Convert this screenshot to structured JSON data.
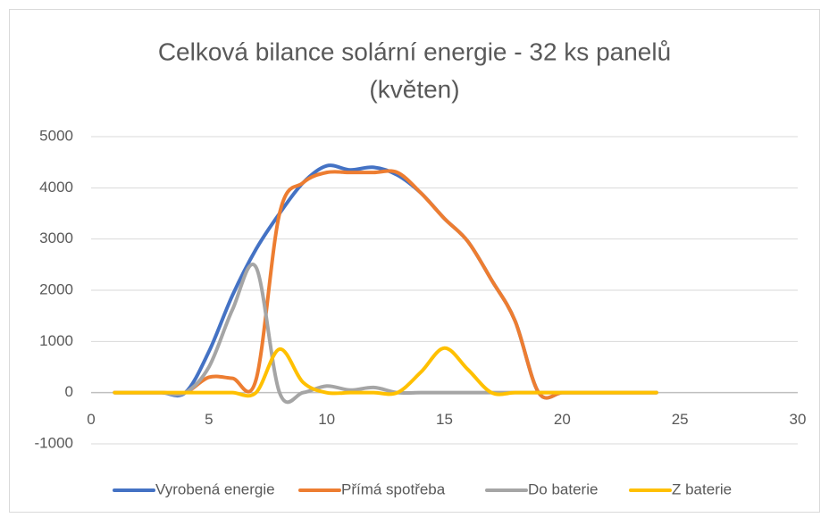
{
  "chart_data": {
    "type": "line",
    "title": [
      "Celková bilance solární energie - 32 ks panelů",
      "(květen)"
    ],
    "x": [
      1,
      2,
      3,
      4,
      5,
      6,
      7,
      8,
      9,
      10,
      11,
      12,
      13,
      14,
      15,
      16,
      17,
      18,
      19,
      20,
      21,
      22,
      23,
      24
    ],
    "series": [
      {
        "name": "Vyrobená energie",
        "color": "#4472c4",
        "values": [
          0,
          0,
          0,
          0,
          800,
          1900,
          2800,
          3500,
          4100,
          4430,
          4350,
          4400,
          4250,
          3900,
          3400,
          2950,
          2200,
          1400,
          0,
          0,
          0,
          0,
          0,
          0
        ]
      },
      {
        "name": "Přímá spotřeba",
        "color": "#ed7d31",
        "values": [
          0,
          0,
          0,
          0,
          300,
          280,
          250,
          3500,
          4100,
          4300,
          4300,
          4300,
          4300,
          3900,
          3400,
          2950,
          2200,
          1400,
          0,
          0,
          0,
          0,
          0,
          0
        ]
      },
      {
        "name": "Do baterie",
        "color": "#a5a5a5",
        "values": [
          0,
          0,
          0,
          0,
          500,
          1620,
          2450,
          0,
          0,
          130,
          50,
          100,
          0,
          0,
          0,
          0,
          0,
          0,
          0,
          0,
          0,
          0,
          0,
          0
        ]
      },
      {
        "name": "Z baterie",
        "color": "#ffc000",
        "values": [
          0,
          0,
          0,
          0,
          0,
          0,
          0,
          850,
          200,
          0,
          0,
          0,
          0,
          400,
          870,
          450,
          0,
          0,
          0,
          0,
          0,
          0,
          0,
          0
        ]
      }
    ],
    "xlim": [
      0,
      30
    ],
    "xticks": [
      0,
      5,
      10,
      15,
      20,
      25,
      30
    ],
    "ylim": [
      -1000,
      5000
    ],
    "yticks": [
      -1000,
      0,
      1000,
      2000,
      3000,
      4000,
      5000
    ],
    "grid": true,
    "legend": "bottom",
    "smooth": true
  }
}
